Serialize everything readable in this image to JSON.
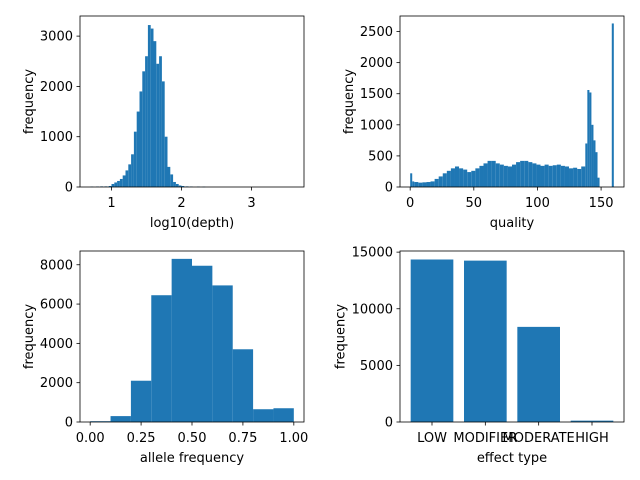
{
  "chart_data": [
    {
      "type": "bar",
      "id": "depth",
      "xlabel": "log10(depth)",
      "ylabel": "frequency",
      "xlim": [
        0.55,
        3.75
      ],
      "ylim": [
        0,
        3400
      ],
      "xticks": [
        1,
        2,
        3
      ],
      "yticks": [
        0,
        1000,
        2000,
        3000
      ],
      "bins": [
        {
          "x0": 0.7,
          "x1": 0.74,
          "y": 8
        },
        {
          "x0": 0.78,
          "x1": 0.82,
          "y": 10
        },
        {
          "x0": 0.84,
          "x1": 0.88,
          "y": 12
        },
        {
          "x0": 0.9,
          "x1": 0.94,
          "y": 12
        },
        {
          "x0": 0.96,
          "x1": 1.0,
          "y": 20
        },
        {
          "x0": 1.0,
          "x1": 1.04,
          "y": 60
        },
        {
          "x0": 1.04,
          "x1": 1.08,
          "y": 90
        },
        {
          "x0": 1.08,
          "x1": 1.12,
          "y": 120
        },
        {
          "x0": 1.12,
          "x1": 1.16,
          "y": 160
        },
        {
          "x0": 1.16,
          "x1": 1.2,
          "y": 230
        },
        {
          "x0": 1.2,
          "x1": 1.24,
          "y": 330
        },
        {
          "x0": 1.24,
          "x1": 1.28,
          "y": 450
        },
        {
          "x0": 1.28,
          "x1": 1.32,
          "y": 650
        },
        {
          "x0": 1.32,
          "x1": 1.36,
          "y": 1100
        },
        {
          "x0": 1.36,
          "x1": 1.4,
          "y": 1500
        },
        {
          "x0": 1.4,
          "x1": 1.44,
          "y": 1900
        },
        {
          "x0": 1.44,
          "x1": 1.48,
          "y": 2300
        },
        {
          "x0": 1.48,
          "x1": 1.52,
          "y": 2600
        },
        {
          "x0": 1.52,
          "x1": 1.56,
          "y": 3220
        },
        {
          "x0": 1.56,
          "x1": 1.6,
          "y": 3150
        },
        {
          "x0": 1.6,
          "x1": 1.64,
          "y": 2900
        },
        {
          "x0": 1.64,
          "x1": 1.68,
          "y": 2450
        },
        {
          "x0": 1.68,
          "x1": 1.72,
          "y": 2600
        },
        {
          "x0": 1.72,
          "x1": 1.76,
          "y": 2100
        },
        {
          "x0": 1.76,
          "x1": 1.8,
          "y": 1000
        },
        {
          "x0": 1.8,
          "x1": 1.84,
          "y": 400
        },
        {
          "x0": 1.84,
          "x1": 1.88,
          "y": 250
        },
        {
          "x0": 1.88,
          "x1": 1.92,
          "y": 100
        },
        {
          "x0": 1.92,
          "x1": 1.96,
          "y": 60
        },
        {
          "x0": 1.96,
          "x1": 2.0,
          "y": 30
        },
        {
          "x0": 2.0,
          "x1": 2.04,
          "y": 20
        },
        {
          "x0": 2.06,
          "x1": 2.1,
          "y": 12
        },
        {
          "x0": 2.12,
          "x1": 2.16,
          "y": 10
        },
        {
          "x0": 2.22,
          "x1": 2.26,
          "y": 8
        },
        {
          "x0": 2.3,
          "x1": 2.34,
          "y": 6
        }
      ]
    },
    {
      "type": "bar",
      "id": "quality",
      "xlabel": "quality",
      "ylabel": "frequency",
      "xlim": [
        -8,
        168
      ],
      "ylim": [
        0,
        2750
      ],
      "xticks": [
        0,
        50,
        100,
        150
      ],
      "yticks": [
        0,
        500,
        1000,
        1500,
        2000,
        2500
      ],
      "bins": [
        {
          "x0": 0,
          "x1": 1.6,
          "y": 220
        },
        {
          "x0": 1.6,
          "x1": 3.2,
          "y": 90
        },
        {
          "x0": 3.2,
          "x1": 6.4,
          "y": 80
        },
        {
          "x0": 6.4,
          "x1": 9.6,
          "y": 70
        },
        {
          "x0": 9.6,
          "x1": 12.8,
          "y": 75
        },
        {
          "x0": 12.8,
          "x1": 16.0,
          "y": 80
        },
        {
          "x0": 16.0,
          "x1": 19.2,
          "y": 90
        },
        {
          "x0": 19.2,
          "x1": 22.4,
          "y": 130
        },
        {
          "x0": 22.4,
          "x1": 25.6,
          "y": 170
        },
        {
          "x0": 25.6,
          "x1": 28.8,
          "y": 220
        },
        {
          "x0": 28.8,
          "x1": 32.0,
          "y": 260
        },
        {
          "x0": 32.0,
          "x1": 35.2,
          "y": 300
        },
        {
          "x0": 35.2,
          "x1": 38.4,
          "y": 330
        },
        {
          "x0": 38.4,
          "x1": 41.6,
          "y": 300
        },
        {
          "x0": 41.6,
          "x1": 44.8,
          "y": 280
        },
        {
          "x0": 44.8,
          "x1": 48.0,
          "y": 240
        },
        {
          "x0": 48.0,
          "x1": 51.2,
          "y": 260
        },
        {
          "x0": 51.2,
          "x1": 54.4,
          "y": 300
        },
        {
          "x0": 54.4,
          "x1": 57.6,
          "y": 340
        },
        {
          "x0": 57.6,
          "x1": 60.8,
          "y": 380
        },
        {
          "x0": 60.8,
          "x1": 64.0,
          "y": 420
        },
        {
          "x0": 64.0,
          "x1": 67.2,
          "y": 420
        },
        {
          "x0": 67.2,
          "x1": 70.4,
          "y": 380
        },
        {
          "x0": 70.4,
          "x1": 73.6,
          "y": 360
        },
        {
          "x0": 73.6,
          "x1": 76.8,
          "y": 340
        },
        {
          "x0": 76.8,
          "x1": 80.0,
          "y": 330
        },
        {
          "x0": 80.0,
          "x1": 83.2,
          "y": 360
        },
        {
          "x0": 83.2,
          "x1": 86.4,
          "y": 400
        },
        {
          "x0": 86.4,
          "x1": 89.6,
          "y": 420
        },
        {
          "x0": 89.6,
          "x1": 92.8,
          "y": 420
        },
        {
          "x0": 92.8,
          "x1": 96.0,
          "y": 400
        },
        {
          "x0": 96.0,
          "x1": 99.2,
          "y": 380
        },
        {
          "x0": 99.2,
          "x1": 102.4,
          "y": 360
        },
        {
          "x0": 102.4,
          "x1": 105.6,
          "y": 340
        },
        {
          "x0": 105.6,
          "x1": 108.8,
          "y": 360
        },
        {
          "x0": 108.8,
          "x1": 112.0,
          "y": 340
        },
        {
          "x0": 112.0,
          "x1": 115.2,
          "y": 350
        },
        {
          "x0": 115.2,
          "x1": 118.4,
          "y": 360
        },
        {
          "x0": 118.4,
          "x1": 121.6,
          "y": 340
        },
        {
          "x0": 121.6,
          "x1": 124.8,
          "y": 330
        },
        {
          "x0": 124.8,
          "x1": 128.0,
          "y": 300
        },
        {
          "x0": 128.0,
          "x1": 131.2,
          "y": 310
        },
        {
          "x0": 131.2,
          "x1": 134.4,
          "y": 290
        },
        {
          "x0": 134.4,
          "x1": 137.6,
          "y": 330
        },
        {
          "x0": 137.6,
          "x1": 139.2,
          "y": 700
        },
        {
          "x0": 139.2,
          "x1": 140.8,
          "y": 1560
        },
        {
          "x0": 140.8,
          "x1": 142.4,
          "y": 1520
        },
        {
          "x0": 142.4,
          "x1": 144.0,
          "y": 1000
        },
        {
          "x0": 144.0,
          "x1": 145.6,
          "y": 750
        },
        {
          "x0": 145.6,
          "x1": 147.2,
          "y": 560
        },
        {
          "x0": 147.2,
          "x1": 148.8,
          "y": 150
        },
        {
          "x0": 158.4,
          "x1": 160.0,
          "y": 2630
        }
      ]
    },
    {
      "type": "bar",
      "id": "allele",
      "xlabel": "allele frequency",
      "ylabel": "frequency",
      "xlim": [
        -0.05,
        1.05
      ],
      "ylim": [
        0,
        8700
      ],
      "xticks": [
        0.0,
        0.25,
        0.5,
        0.75,
        1.0
      ],
      "xticklabels": [
        "0.00",
        "0.25",
        "0.50",
        "0.75",
        "1.00"
      ],
      "yticks": [
        0,
        2000,
        4000,
        6000,
        8000
      ],
      "bins": [
        {
          "x0": 0.0,
          "x1": 0.1,
          "y": 40
        },
        {
          "x0": 0.1,
          "x1": 0.2,
          "y": 300
        },
        {
          "x0": 0.2,
          "x1": 0.3,
          "y": 2100
        },
        {
          "x0": 0.3,
          "x1": 0.4,
          "y": 6450
        },
        {
          "x0": 0.4,
          "x1": 0.5,
          "y": 8300
        },
        {
          "x0": 0.5,
          "x1": 0.6,
          "y": 7950
        },
        {
          "x0": 0.6,
          "x1": 0.7,
          "y": 6950
        },
        {
          "x0": 0.7,
          "x1": 0.8,
          "y": 3700
        },
        {
          "x0": 0.8,
          "x1": 0.9,
          "y": 650
        },
        {
          "x0": 0.9,
          "x1": 1.0,
          "y": 700
        }
      ]
    },
    {
      "type": "bar",
      "id": "effect",
      "xlabel": "effect type",
      "ylabel": "frequency",
      "ylim": [
        0,
        15100
      ],
      "yticks": [
        0,
        5000,
        10000,
        15000
      ],
      "categories": [
        "LOW",
        "MODIFIER",
        "MODERATE",
        "HIGH"
      ],
      "values": [
        14350,
        14250,
        8400,
        120
      ]
    }
  ]
}
